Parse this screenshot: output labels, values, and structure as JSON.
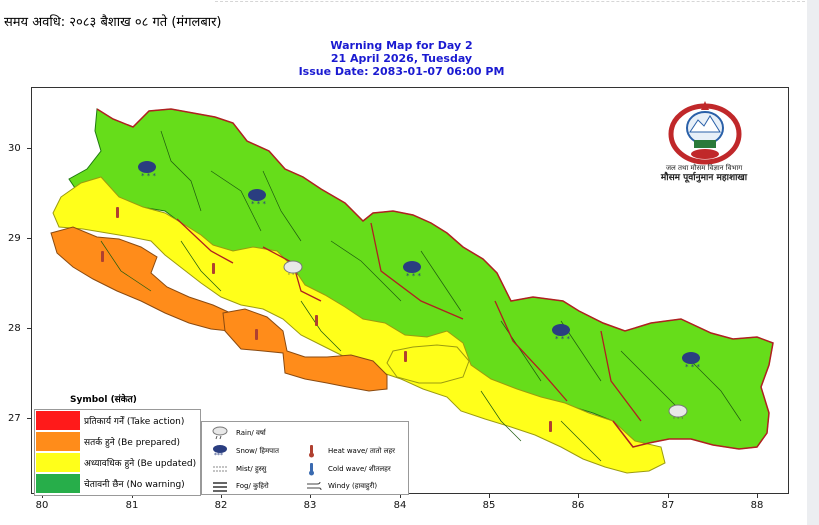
{
  "header": {
    "text": "समय अवधि: २०८३ बैशाख ०८ गते (मंगलबार)"
  },
  "titles": {
    "line1": "Warning Map for Day 2",
    "line2": "21 April 2026, Tuesday",
    "line3": "Issue Date: 2083-01-07 06:00 PM"
  },
  "axes": {
    "y_ticks": [
      "30",
      "29",
      "28",
      "27"
    ],
    "x_ticks": [
      "80",
      "81",
      "82",
      "83",
      "84",
      "85",
      "86",
      "87",
      "88"
    ]
  },
  "department": {
    "line1": "जल तथा मौसम विज्ञान विभाग",
    "line2": "मौसम पूर्वानुमान महाशाखा"
  },
  "legend": {
    "title": "Symbol (संकेत)",
    "levels": [
      {
        "label": "प्रतिकार्य गर्नें (Take action)",
        "color": "#ff1a1a"
      },
      {
        "label": "सतर्क हुने (Be prepared)",
        "color": "#ff8c1a"
      },
      {
        "label": "अध्यावधिक हुने (Be updated)",
        "color": "#ffff1a"
      },
      {
        "label": "चेतावनी छैन (No warning)",
        "color": "#27ae4a"
      }
    ],
    "symbols": [
      {
        "label": "Rain/ वर्षा",
        "icon": "rain-icon"
      },
      {
        "label": "Snow/ हिमपात",
        "icon": "snow-icon"
      },
      {
        "label": "Mist/ हुस्सु",
        "icon": "mist-icon"
      },
      {
        "label": "Fog/ कुहिरो",
        "icon": "fog-icon"
      },
      {
        "label": "Heat wave/ तातो लहर",
        "icon": "heat-wave-icon"
      },
      {
        "label": "Cold wave/ शीतलहर",
        "icon": "cold-wave-icon"
      },
      {
        "label": "Windy (हावाहुरी)",
        "icon": "wind-icon"
      }
    ]
  },
  "colors": {
    "no_warning_map": "#66dd1a",
    "be_updated": "#ffff1a",
    "be_prepared": "#ff8c1a",
    "title_blue": "#1a1ad1",
    "province_border": "#b02020"
  }
}
